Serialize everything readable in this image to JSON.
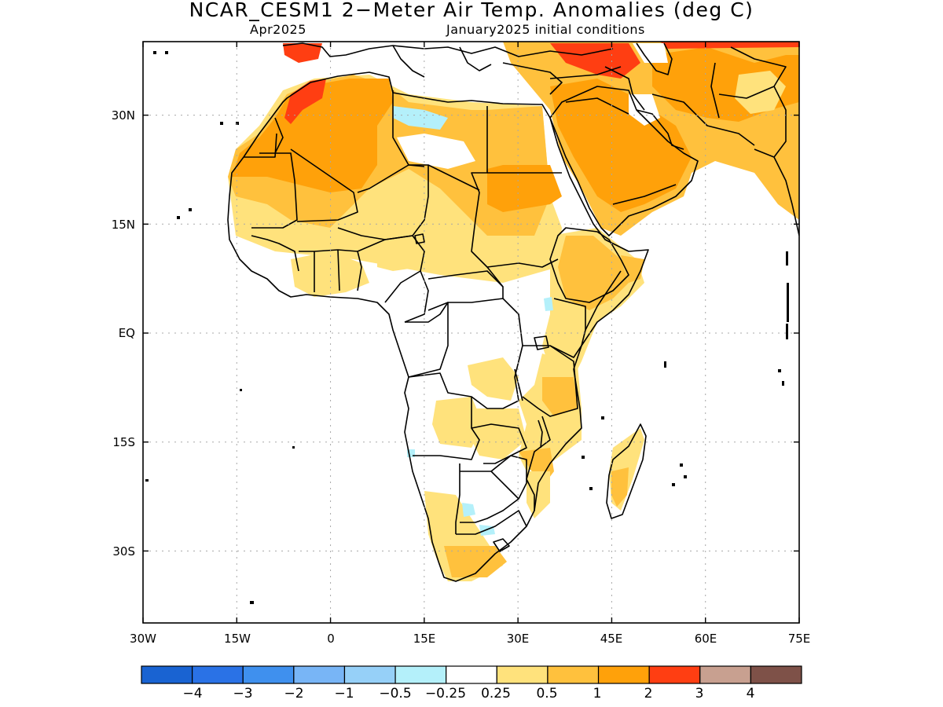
{
  "title": "NCAR_CESM1 2−Meter Air Temp. Anomalies (deg C)",
  "subtitle_left": "Apr2025",
  "subtitle_right": "January2025 initial conditions",
  "lon_ticks": [
    "30W",
    "15W",
    "0",
    "15E",
    "30E",
    "45E",
    "60E",
    "75E"
  ],
  "lat_ticks": [
    "30N",
    "15N",
    "EQ",
    "15S",
    "30S"
  ],
  "colorbar": {
    "colors": [
      "#1963d2",
      "#2a72e6",
      "#3f90ee",
      "#78b5f6",
      "#96d0f8",
      "#b4f0fa",
      "#ffffff",
      "#ffe27c",
      "#ffc13d",
      "#ffa10a",
      "#ff3e12",
      "#c8a090",
      "#7e5148"
    ],
    "labels": [
      "−4",
      "−3",
      "−2",
      "−1",
      "−0.5",
      "−0.25",
      "0.25",
      "0.5",
      "1",
      "2",
      "3",
      "4"
    ]
  },
  "colors": {
    "land_outline": "#000000",
    "grid": "#a8a8a8",
    "anom_0_5": "#ffe27c",
    "anom_1": "#ffc13d",
    "anom_2": "#ffa10a",
    "anom_3": "#ff3e12",
    "anom_neg": "#b4f0fa"
  }
}
